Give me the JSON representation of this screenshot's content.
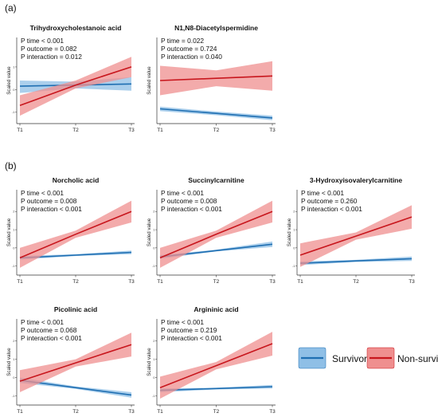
{
  "colors": {
    "survivor_line": "#1f6fb2",
    "survivor_band": "#8fbfe6",
    "nonsurvivor_line": "#c8161d",
    "nonsurvivor_band": "#ef8f8f"
  },
  "section_labels": [
    "(a)",
    "(b)"
  ],
  "legend": [
    {
      "label": "Survivor",
      "key": "survivor"
    },
    {
      "label": "Non-survivor",
      "key": "nonsurvivor"
    }
  ],
  "chart_data": [
    {
      "type": "line",
      "title": "Trihydroxycholestanoic acid",
      "stats": [
        "P time  < 0.001",
        "P outcome = 0.082",
        "P interaction = 0.012"
      ],
      "categories": [
        "T1",
        "T2",
        "T3"
      ],
      "ylabel": "Scaled value",
      "yticks": [
        "1",
        "0",
        "-1"
      ],
      "ylim": [
        -1.5,
        2.3
      ],
      "series": [
        {
          "name": "Survivor",
          "values": [
            0.15,
            0.2,
            0.25
          ],
          "lower": [
            -0.15,
            0.05,
            -0.05
          ],
          "upper": [
            0.4,
            0.35,
            0.55
          ]
        },
        {
          "name": "Non-survivor",
          "values": [
            -0.7,
            0.2,
            1.0
          ],
          "lower": [
            -1.15,
            0.05,
            0.55
          ],
          "upper": [
            -0.25,
            0.4,
            1.45
          ]
        }
      ]
    },
    {
      "type": "line",
      "title": "N1,N8-Diacetylspermidine",
      "stats": [
        "P time = 0.022",
        "P outcome = 0.724",
        "P interaction = 0.040"
      ],
      "categories": [
        "T1",
        "T2",
        "T3"
      ],
      "ylabel": "Scaled value",
      "yticks": [],
      "ylim": [
        -1.5,
        2.3
      ],
      "series": [
        {
          "name": "Survivor",
          "values": [
            -0.85,
            -1.05,
            -1.25
          ],
          "lower": [
            -0.95,
            -1.13,
            -1.35
          ],
          "upper": [
            -0.75,
            -0.97,
            -1.15
          ]
        },
        {
          "name": "Non-survivor",
          "values": [
            0.4,
            0.5,
            0.6
          ],
          "lower": [
            -0.25,
            0.15,
            -0.05
          ],
          "upper": [
            1.05,
            0.85,
            1.25
          ]
        }
      ]
    },
    {
      "type": "line",
      "title": "Norcholic acid",
      "stats": [
        "P time  < 0.001",
        "P outcome = 0.008",
        "P interaction  < 0.001"
      ],
      "categories": [
        "T1",
        "T2",
        "T3"
      ],
      "ylabel": "Scaled value",
      "yticks": [
        "2",
        "1",
        "0",
        "-1"
      ],
      "ylim": [
        -1.5,
        3.2
      ],
      "series": [
        {
          "name": "Survivor",
          "values": [
            -0.55,
            -0.4,
            -0.25
          ],
          "lower": [
            -0.65,
            -0.45,
            -0.35
          ],
          "upper": [
            -0.45,
            -0.35,
            -0.15
          ]
        },
        {
          "name": "Non-survivor",
          "values": [
            -0.55,
            0.75,
            2.0
          ],
          "lower": [
            -1.1,
            0.55,
            1.4
          ],
          "upper": [
            0.0,
            0.95,
            2.6
          ]
        }
      ]
    },
    {
      "type": "line",
      "title": "Succinylcarnitine",
      "stats": [
        "P time  < 0.001",
        "P outcome = 0.008",
        "P interaction  < 0.001"
      ],
      "categories": [
        "T1",
        "T2",
        "T3"
      ],
      "ylabel": "Scaled value",
      "yticks": [
        "2",
        "1",
        "0",
        "-1"
      ],
      "ylim": [
        -1.5,
        3.2
      ],
      "series": [
        {
          "name": "Survivor",
          "values": [
            -0.5,
            -0.15,
            0.2
          ],
          "lower": [
            -0.6,
            -0.2,
            0.05
          ],
          "upper": [
            -0.4,
            -0.1,
            0.35
          ]
        },
        {
          "name": "Non-survivor",
          "values": [
            -0.55,
            0.75,
            2.0
          ],
          "lower": [
            -1.1,
            0.55,
            1.4
          ],
          "upper": [
            0.0,
            0.95,
            2.6
          ]
        }
      ]
    },
    {
      "type": "line",
      "title": "3-Hydroxyisovalerylcarnitine",
      "stats": [
        "P time  < 0.001",
        "P outcome = 0.260",
        "P interaction  < 0.001"
      ],
      "categories": [
        "T1",
        "T2",
        "T3"
      ],
      "ylabel": "Scaled value",
      "yticks": [
        "2",
        "1",
        "0",
        "-1"
      ],
      "ylim": [
        -1.5,
        3.2
      ],
      "series": [
        {
          "name": "Survivor",
          "values": [
            -0.85,
            -0.72,
            -0.6
          ],
          "lower": [
            -0.95,
            -0.78,
            -0.72
          ],
          "upper": [
            -0.75,
            -0.66,
            -0.48
          ]
        },
        {
          "name": "Non-survivor",
          "values": [
            -0.4,
            0.65,
            1.7
          ],
          "lower": [
            -1.05,
            0.45,
            1.05
          ],
          "upper": [
            0.25,
            0.85,
            2.35
          ]
        }
      ]
    },
    {
      "type": "line",
      "title": "Picolinic acid",
      "stats": [
        "P time  < 0.001",
        "P outcome = 0.068",
        "P interaction  < 0.001"
      ],
      "categories": [
        "T1",
        "T2",
        "T3"
      ],
      "ylabel": "Scaled value",
      "yticks": [
        "2",
        "1",
        "0",
        "-1"
      ],
      "ylim": [
        -1.5,
        3.2
      ],
      "series": [
        {
          "name": "Survivor",
          "values": [
            -0.15,
            -0.55,
            -0.95
          ],
          "lower": [
            -0.3,
            -0.62,
            -1.1
          ],
          "upper": [
            0.0,
            -0.48,
            -0.8
          ]
        },
        {
          "name": "Non-survivor",
          "values": [
            -0.2,
            0.8,
            1.8
          ],
          "lower": [
            -0.8,
            0.6,
            1.15
          ],
          "upper": [
            0.4,
            1.0,
            2.45
          ]
        }
      ]
    },
    {
      "type": "line",
      "title": "Argininic acid",
      "stats": [
        "P time  < 0.001",
        "P outcome = 0.219",
        "P interaction  < 0.001"
      ],
      "categories": [
        "T1",
        "T2",
        "T3"
      ],
      "ylabel": "Scaled value",
      "yticks": [
        "2",
        "1",
        "0",
        "-1"
      ],
      "ylim": [
        -1.5,
        3.2
      ],
      "series": [
        {
          "name": "Survivor",
          "values": [
            -0.7,
            -0.6,
            -0.5
          ],
          "lower": [
            -0.8,
            -0.65,
            -0.6
          ],
          "upper": [
            -0.6,
            -0.55,
            -0.4
          ]
        },
        {
          "name": "Non-survivor",
          "values": [
            -0.55,
            0.65,
            1.85
          ],
          "lower": [
            -1.15,
            0.45,
            1.2
          ],
          "upper": [
            0.05,
            0.85,
            2.5
          ]
        }
      ]
    }
  ]
}
